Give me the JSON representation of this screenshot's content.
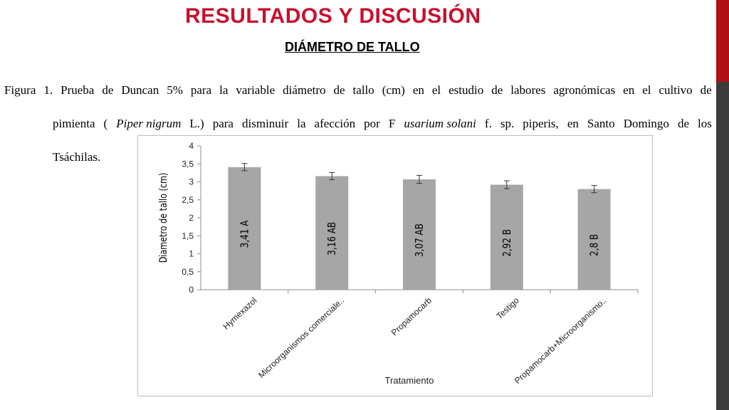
{
  "slide": {
    "title": "RESULTADOS Y DISCUSIÓN",
    "subtitle": "DIÁMETRO DE TALLO"
  },
  "caption": {
    "line1_words": [
      "Figura",
      "1.",
      "Prueba",
      "de",
      "Duncan",
      "5%",
      "para",
      "la",
      "variable",
      "diámetro",
      "de",
      "tallo",
      "(cm)",
      "en",
      "el",
      "estudio",
      "de",
      "labores",
      "agronómicas",
      "en",
      "el",
      "cultivo",
      "de"
    ],
    "line2_parts": [
      {
        "text": "pimienta",
        "italic": false
      },
      {
        "text": "(",
        "italic": false
      },
      {
        "text": "Piper nigrum",
        "italic": true
      },
      {
        "text": "L.)",
        "italic": false
      },
      {
        "text": "para",
        "italic": false
      },
      {
        "text": "disminuir",
        "italic": false
      },
      {
        "text": "la",
        "italic": false
      },
      {
        "text": "afección",
        "italic": false
      },
      {
        "text": "por",
        "italic": false
      },
      {
        "text": "F",
        "italic": false
      },
      {
        "text": "usarium solani",
        "italic": true
      },
      {
        "text": "f.",
        "italic": false
      },
      {
        "text": "sp.",
        "italic": false
      },
      {
        "text": "piperis,",
        "italic": false
      },
      {
        "text": "en",
        "italic": false
      },
      {
        "text": "Santo",
        "italic": false
      },
      {
        "text": "Domingo",
        "italic": false
      },
      {
        "text": "de",
        "italic": false
      },
      {
        "text": "los",
        "italic": false
      }
    ],
    "line3": "Tsáchilas."
  },
  "chart_data": {
    "type": "bar",
    "categories": [
      "Hymexazol",
      "Microorganismos comerciale..",
      "Propamocarb",
      "Testigo",
      "Propamocarb+Microorganismo.."
    ],
    "values": [
      3.41,
      3.16,
      3.07,
      2.92,
      2.8
    ],
    "error": [
      0.1,
      0.1,
      0.11,
      0.11,
      0.1
    ],
    "bar_labels": [
      "3,41    A",
      "3,16    AB",
      "3,07    AB",
      "2,92    B",
      "2,8    B"
    ],
    "ylim": [
      0,
      4
    ],
    "yticks": [
      0,
      0.5,
      1,
      1.5,
      2,
      2.5,
      3,
      3.5,
      4
    ],
    "ytick_labels": [
      "0",
      "0,5",
      "1",
      "1,5",
      "2",
      "2,5",
      "3",
      "3,5",
      "4"
    ],
    "xlabel": "Tratamiento",
    "ylabel": "Diametro de tallo (cm)",
    "bar_color": "#a6a6a6",
    "grid": false
  }
}
